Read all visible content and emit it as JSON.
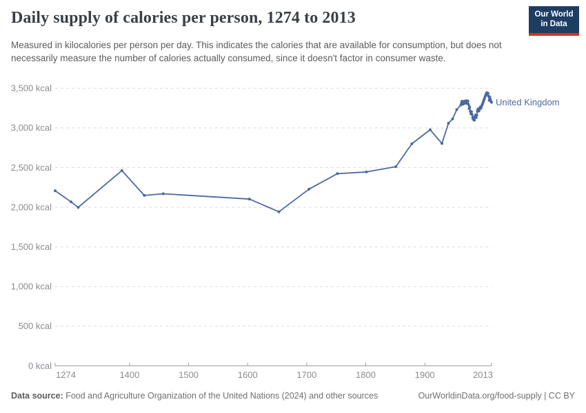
{
  "header": {
    "title": "Daily supply of calories per person, 1274 to 2013",
    "subtitle": "Measured in kilocalories per person per day. This indicates the calories that are available for consumption, but does not necessarily measure the number of calories actually consumed, since it doesn't factor in consumer waste.",
    "logo_line1": "Our World",
    "logo_line2": "in Data"
  },
  "footer": {
    "data_source_label": "Data source:",
    "data_source_text": " Food and Agriculture Organization of the United Nations (2024) and other sources",
    "link_text": "OurWorldinData.org/food-supply | CC BY"
  },
  "colors": {
    "accent_line": "#4a69a2",
    "logo_background": "#1d3d63",
    "logo_stripe": "#dc2e22",
    "grid": "#dcdcdc",
    "axis": "#9d9d9d",
    "tick_text": "#888c90"
  },
  "chart_data": {
    "type": "line",
    "title": "Daily supply of calories per person, 1274 to 2013",
    "xlabel": "",
    "ylabel": "",
    "xlim": [
      1274,
      2013
    ],
    "ylim": [
      0,
      3500
    ],
    "grid": "horizontal-dashed",
    "legend_position": "end-of-line",
    "unit": "kcal",
    "yticks": [
      {
        "value": 0,
        "label": "0 kcal"
      },
      {
        "value": 500,
        "label": "500 kcal"
      },
      {
        "value": 1000,
        "label": "1,000 kcal"
      },
      {
        "value": 1500,
        "label": "1,500 kcal"
      },
      {
        "value": 2000,
        "label": "2,000 kcal"
      },
      {
        "value": 2500,
        "label": "2,500 kcal"
      },
      {
        "value": 3000,
        "label": "3,000 kcal"
      },
      {
        "value": 3500,
        "label": "3,500 kcal"
      }
    ],
    "xticks": [
      {
        "value": 1274,
        "label": "1274",
        "align": "start"
      },
      {
        "value": 1400,
        "label": "1400",
        "align": "middle"
      },
      {
        "value": 1500,
        "label": "1500",
        "align": "middle"
      },
      {
        "value": 1600,
        "label": "1600",
        "align": "middle"
      },
      {
        "value": 1700,
        "label": "1700",
        "align": "middle"
      },
      {
        "value": 1800,
        "label": "1800",
        "align": "middle"
      },
      {
        "value": 1900,
        "label": "1900",
        "align": "middle"
      },
      {
        "value": 2013,
        "label": "2013",
        "align": "end"
      }
    ],
    "series": [
      {
        "name": "United Kingdom",
        "color": "#4a69a2",
        "points": [
          [
            1274,
            2208
          ],
          [
            1301,
            2068
          ],
          [
            1313,
            1998
          ],
          [
            1387,
            2463
          ],
          [
            1425,
            2149
          ],
          [
            1457,
            2170
          ],
          [
            1603,
            2103
          ],
          [
            1653,
            1943
          ],
          [
            1704,
            2229
          ],
          [
            1752,
            2424
          ],
          [
            1801,
            2445
          ],
          [
            1851,
            2512
          ],
          [
            1878,
            2800
          ],
          [
            1909,
            2977
          ],
          [
            1929,
            2805
          ],
          [
            1940,
            3060
          ],
          [
            1947,
            3115
          ],
          [
            1954,
            3231
          ],
          [
            1961,
            3290
          ],
          [
            1962,
            3312
          ],
          [
            1963,
            3338
          ],
          [
            1964,
            3318
          ],
          [
            1965,
            3300
          ],
          [
            1966,
            3318
          ],
          [
            1967,
            3337
          ],
          [
            1968,
            3312
          ],
          [
            1969,
            3328
          ],
          [
            1970,
            3345
          ],
          [
            1971,
            3312
          ],
          [
            1972,
            3328
          ],
          [
            1973,
            3340
          ],
          [
            1974,
            3295
          ],
          [
            1975,
            3245
          ],
          [
            1976,
            3265
          ],
          [
            1977,
            3210
          ],
          [
            1978,
            3180
          ],
          [
            1979,
            3205
          ],
          [
            1980,
            3170
          ],
          [
            1981,
            3130
          ],
          [
            1982,
            3108
          ],
          [
            1983,
            3135
          ],
          [
            1984,
            3098
          ],
          [
            1985,
            3145
          ],
          [
            1986,
            3165
          ],
          [
            1987,
            3130
          ],
          [
            1988,
            3160
          ],
          [
            1989,
            3215
          ],
          [
            1990,
            3240
          ],
          [
            1991,
            3212
          ],
          [
            1992,
            3220
          ],
          [
            1993,
            3245
          ],
          [
            1994,
            3265
          ],
          [
            1995,
            3248
          ],
          [
            1996,
            3270
          ],
          [
            1997,
            3290
          ],
          [
            1998,
            3310
          ],
          [
            1999,
            3330
          ],
          [
            2000,
            3352
          ],
          [
            2001,
            3370
          ],
          [
            2002,
            3395
          ],
          [
            2003,
            3412
          ],
          [
            2004,
            3430
          ],
          [
            2005,
            3445
          ],
          [
            2006,
            3420
          ],
          [
            2007,
            3438
          ],
          [
            2008,
            3400
          ],
          [
            2009,
            3348
          ],
          [
            2010,
            3390
          ],
          [
            2011,
            3360
          ],
          [
            2012,
            3335
          ],
          [
            2013,
            3324
          ]
        ]
      }
    ]
  }
}
